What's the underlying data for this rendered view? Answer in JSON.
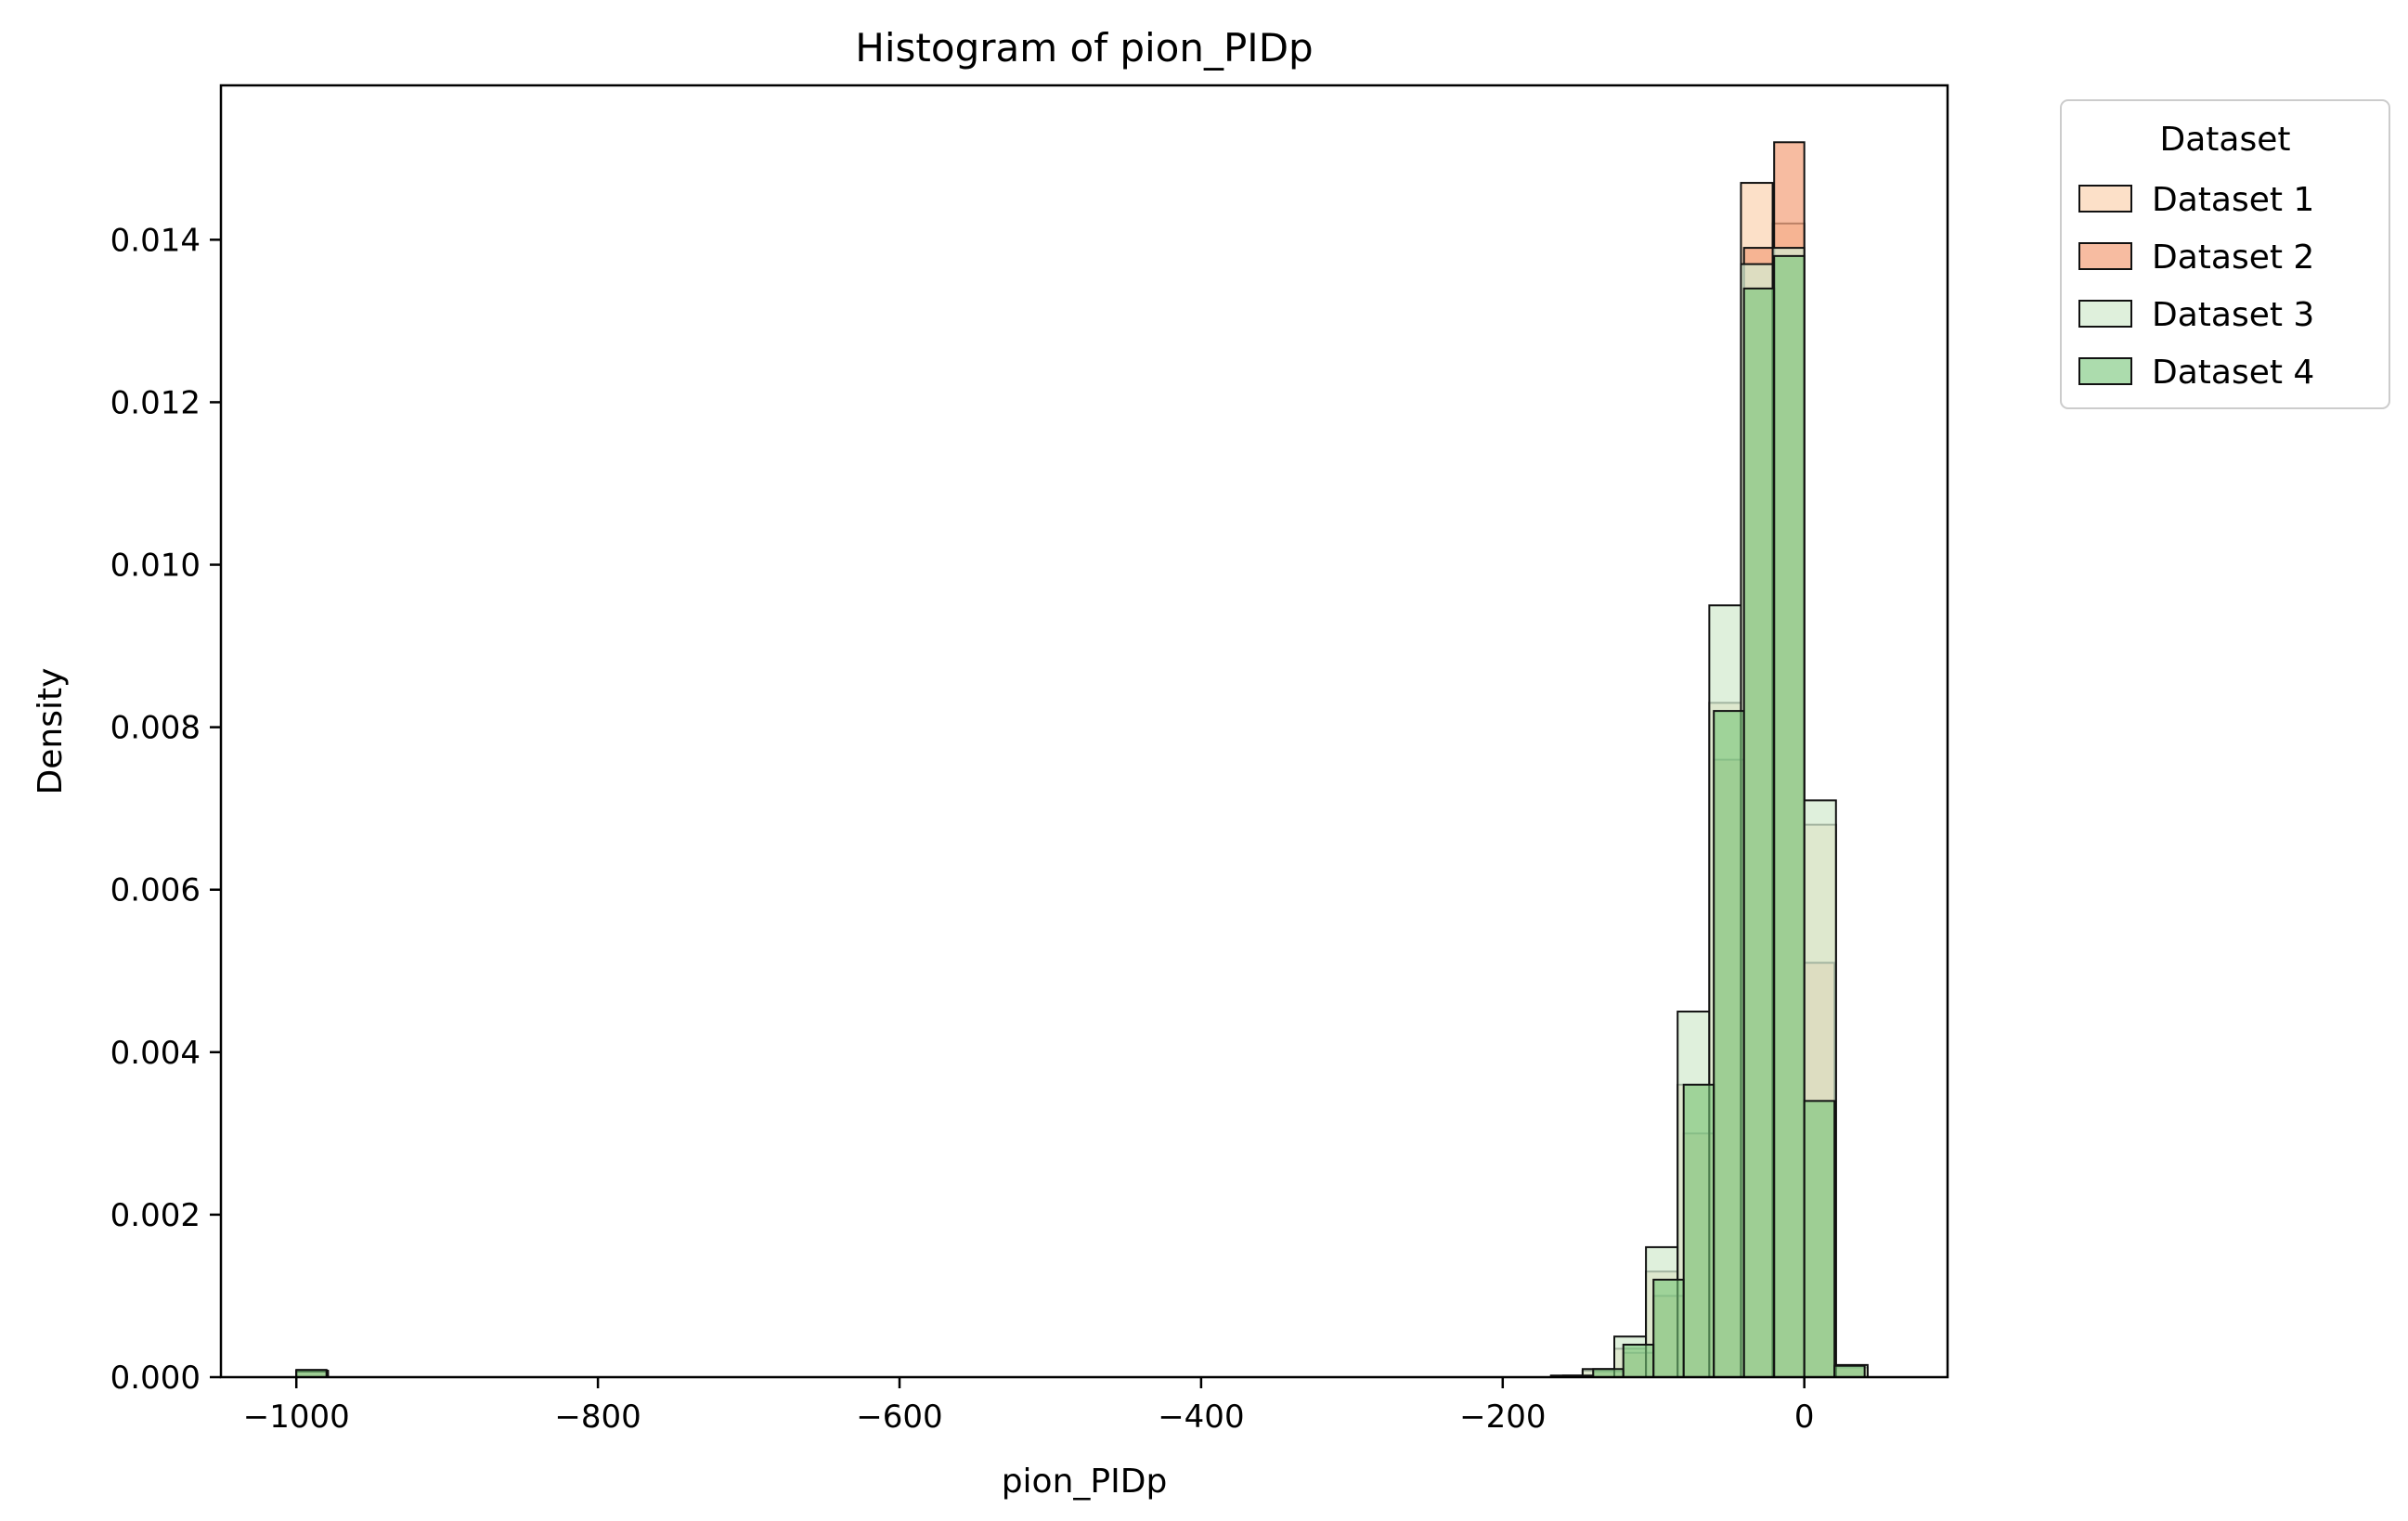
{
  "chart_data": {
    "type": "histogram",
    "title": "Histogram of pion_PIDp",
    "xlabel": "pion_PIDp",
    "ylabel": "Density",
    "xlim": [
      -1050,
      95
    ],
    "ylim": [
      0,
      0.0159
    ],
    "xticks": [
      -1000,
      -800,
      -600,
      -400,
      -200,
      0
    ],
    "xtick_labels": [
      "−1000",
      "−800",
      "−600",
      "−400",
      "−200",
      "0"
    ],
    "yticks": [
      0,
      0.002,
      0.004,
      0.006,
      0.008,
      0.01,
      0.012,
      0.014
    ],
    "ytick_labels": [
      "0.000",
      "0.002",
      "0.004",
      "0.006",
      "0.008",
      "0.010",
      "0.012",
      "0.014"
    ],
    "legend": {
      "title": "Dataset",
      "position": "outside upper right"
    },
    "series": [
      {
        "name": "Dataset 1",
        "color": "#fbd5b5",
        "opacity": 0.75,
        "bin_width": 21,
        "bins": [
          {
            "x0": -1000,
            "value": 8e-05
          },
          {
            "x0": -168,
            "value": 1e-05
          },
          {
            "x0": -147,
            "value": 8e-05
          },
          {
            "x0": -126,
            "value": 0.00035
          },
          {
            "x0": -105,
            "value": 0.0013
          },
          {
            "x0": -84,
            "value": 0.0036
          },
          {
            "x0": -63,
            "value": 0.0083
          },
          {
            "x0": -42,
            "value": 0.0147
          },
          {
            "x0": -21,
            "value": 0.0142
          },
          {
            "x0": 0,
            "value": 0.0068
          },
          {
            "x0": 21,
            "value": 0.00012
          }
        ]
      },
      {
        "name": "Dataset 2",
        "color": "#f4a582",
        "opacity": 0.75,
        "bin_width": 20,
        "bins": [
          {
            "x0": -1000,
            "value": 8e-05
          },
          {
            "x0": -160,
            "value": 1e-05
          },
          {
            "x0": -140,
            "value": 7e-05
          },
          {
            "x0": -120,
            "value": 0.0003
          },
          {
            "x0": -100,
            "value": 0.001
          },
          {
            "x0": -80,
            "value": 0.003
          },
          {
            "x0": -60,
            "value": 0.0076
          },
          {
            "x0": -40,
            "value": 0.0139
          },
          {
            "x0": -20,
            "value": 0.0152
          },
          {
            "x0": 0,
            "value": 0.0051
          },
          {
            "x0": 20,
            "value": 0.00012
          }
        ]
      },
      {
        "name": "Dataset 3",
        "color": "#d4ebd0",
        "opacity": 0.75,
        "bin_width": 21,
        "bins": [
          {
            "x0": -1000,
            "value": 7e-05
          },
          {
            "x0": -168,
            "value": 2e-05
          },
          {
            "x0": -147,
            "value": 0.0001
          },
          {
            "x0": -126,
            "value": 0.0005
          },
          {
            "x0": -105,
            "value": 0.0016
          },
          {
            "x0": -84,
            "value": 0.0045
          },
          {
            "x0": -63,
            "value": 0.0095
          },
          {
            "x0": -42,
            "value": 0.0137
          },
          {
            "x0": -21,
            "value": 0.0139
          },
          {
            "x0": 0,
            "value": 0.0071
          },
          {
            "x0": 21,
            "value": 0.00015
          }
        ]
      },
      {
        "name": "Dataset 4",
        "color": "#74c476",
        "opacity": 0.6,
        "bin_width": 20,
        "bins": [
          {
            "x0": -1000,
            "value": 9e-05
          },
          {
            "x0": -160,
            "value": 2e-05
          },
          {
            "x0": -140,
            "value": 0.0001
          },
          {
            "x0": -120,
            "value": 0.0004
          },
          {
            "x0": -100,
            "value": 0.0012
          },
          {
            "x0": -80,
            "value": 0.0036
          },
          {
            "x0": -60,
            "value": 0.0082
          },
          {
            "x0": -40,
            "value": 0.0134
          },
          {
            "x0": -20,
            "value": 0.0138
          },
          {
            "x0": 0,
            "value": 0.0034
          },
          {
            "x0": 20,
            "value": 0.00014
          }
        ]
      }
    ]
  }
}
